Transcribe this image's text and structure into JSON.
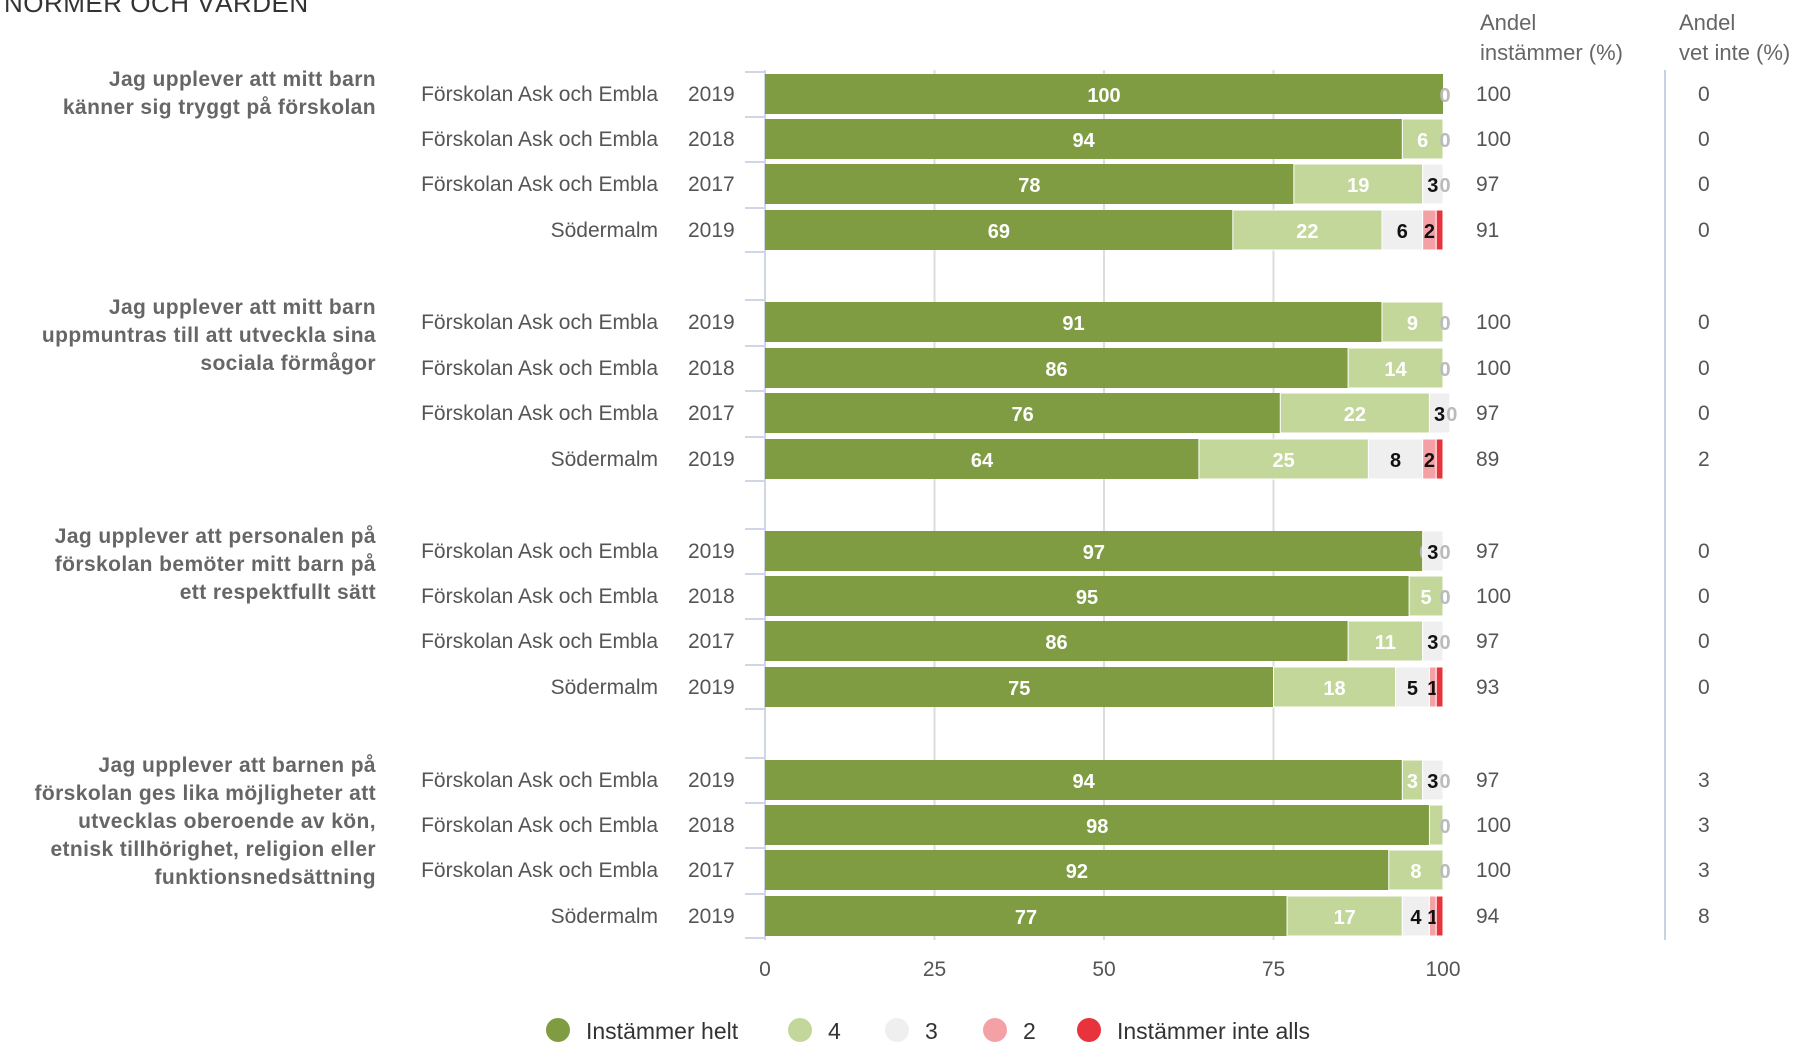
{
  "header": {
    "section_title": "NORMER OCH VÄRDEN",
    "col_agree": "Andel instämmer (%)",
    "col_agree_line1": "Andel",
    "col_agree_line2": "instämmer (%)",
    "col_dontknow": "Andel vet inte (%)",
    "col_dontknow_line1": "Andel",
    "col_dontknow_line2": "vet inte (%)"
  },
  "chart_data": {
    "type": "bar",
    "orientation": "horizontal",
    "stacked": true,
    "xlim": [
      0,
      100
    ],
    "xticks": [
      0,
      25,
      50,
      75,
      100
    ],
    "grid": true,
    "legend_position": "bottom",
    "legend": [
      {
        "name": "Instämmer helt",
        "color": "#7f9c43"
      },
      {
        "name": "4",
        "color": "#c4d79b"
      },
      {
        "name": "3",
        "color": "#efefef"
      },
      {
        "name": "2",
        "color": "#f4a1a6"
      },
      {
        "name": "Instämmer inte alls",
        "color": "#e8333d"
      }
    ],
    "groups": [
      {
        "question": "Jag upplever att mitt barn känner sig tryggt på förskolan",
        "question_lines": [
          "Jag upplever att mitt barn",
          "känner sig tryggt på förskolan"
        ],
        "rows": [
          {
            "unit": "Förskolan Ask och Embla",
            "year": "2019",
            "values": [
              100,
              0,
              0,
              0,
              0
            ],
            "labels": [
              "100",
              "",
              "0",
              "",
              ""
            ],
            "agree": "100",
            "dontknow": "0"
          },
          {
            "unit": "Förskolan Ask och Embla",
            "year": "2018",
            "values": [
              94,
              6,
              0,
              0,
              0
            ],
            "labels": [
              "94",
              "6",
              "0",
              "",
              ""
            ],
            "agree": "100",
            "dontknow": "0"
          },
          {
            "unit": "Förskolan Ask och Embla",
            "year": "2017",
            "values": [
              78,
              19,
              3,
              0,
              0
            ],
            "labels": [
              "78",
              "19",
              "3",
              "0",
              ""
            ],
            "agree": "97",
            "dontknow": "0"
          },
          {
            "unit": "Södermalm",
            "year": "2019",
            "values": [
              69,
              22,
              6,
              2,
              1
            ],
            "labels": [
              "69",
              "22",
              "6",
              "2",
              ""
            ],
            "agree": "91",
            "dontknow": "0"
          }
        ]
      },
      {
        "question": "Jag upplever att mitt barn uppmuntras till att utveckla sina sociala förmågor",
        "question_lines": [
          "Jag upplever att mitt barn",
          "uppmuntras till att utveckla sina",
          "sociala förmågor"
        ],
        "rows": [
          {
            "unit": "Förskolan Ask och Embla",
            "year": "2019",
            "values": [
              91,
              9,
              0,
              0,
              0
            ],
            "labels": [
              "91",
              "9",
              "0",
              "",
              ""
            ],
            "agree": "100",
            "dontknow": "0"
          },
          {
            "unit": "Förskolan Ask och Embla",
            "year": "2018",
            "values": [
              86,
              14,
              0,
              0,
              0
            ],
            "labels": [
              "86",
              "14",
              "0",
              "",
              ""
            ],
            "agree": "100",
            "dontknow": "0"
          },
          {
            "unit": "Förskolan Ask och Embla",
            "year": "2017",
            "values": [
              76,
              22,
              3,
              0,
              0
            ],
            "labels": [
              "76",
              "22",
              "3",
              "0",
              ""
            ],
            "agree": "97",
            "dontknow": "0"
          },
          {
            "unit": "Södermalm",
            "year": "2019",
            "values": [
              64,
              25,
              8,
              2,
              1
            ],
            "labels": [
              "64",
              "25",
              "8",
              "2",
              ""
            ],
            "agree": "89",
            "dontknow": "2"
          }
        ]
      },
      {
        "question": "Jag upplever att personalen på förskolan bemöter mitt barn på ett respektfullt sätt",
        "question_lines": [
          "Jag upplever att personalen på",
          "förskolan bemöter mitt barn på",
          "ett respektfullt sätt"
        ],
        "rows": [
          {
            "unit": "Förskolan Ask och Embla",
            "year": "2019",
            "values": [
              97,
              0,
              3,
              0,
              0
            ],
            "labels": [
              "97",
              "0",
              "3",
              "0",
              ""
            ],
            "agree": "97",
            "dontknow": "0"
          },
          {
            "unit": "Förskolan Ask och Embla",
            "year": "2018",
            "values": [
              95,
              5,
              0,
              0,
              0
            ],
            "labels": [
              "95",
              "5",
              "0",
              "",
              ""
            ],
            "agree": "100",
            "dontknow": "0"
          },
          {
            "unit": "Förskolan Ask och Embla",
            "year": "2017",
            "values": [
              86,
              11,
              3,
              0,
              0
            ],
            "labels": [
              "86",
              "11",
              "3",
              "0",
              ""
            ],
            "agree": "97",
            "dontknow": "0"
          },
          {
            "unit": "Södermalm",
            "year": "2019",
            "values": [
              75,
              18,
              5,
              1,
              1
            ],
            "labels": [
              "75",
              "18",
              "5",
              "1",
              ""
            ],
            "agree": "93",
            "dontknow": "0"
          }
        ]
      },
      {
        "question": "Jag upplever att barnen på förskolan ges lika möjligheter att utvecklas oberoende av kön, etnisk tillhörighet, religion eller funktionsnedsättning",
        "question_lines": [
          "Jag upplever att barnen på",
          "förskolan ges lika möjligheter att",
          "utvecklas oberoende av kön,",
          "etnisk tillhörighet, religion eller",
          "funktionsnedsättning"
        ],
        "rows": [
          {
            "unit": "Förskolan Ask och Embla",
            "year": "2019",
            "values": [
              94,
              3,
              3,
              0,
              0
            ],
            "labels": [
              "94",
              "3",
              "3",
              "0",
              ""
            ],
            "agree": "97",
            "dontknow": "3"
          },
          {
            "unit": "Förskolan Ask och Embla",
            "year": "2018",
            "values": [
              98,
              2,
              0,
              0,
              0
            ],
            "labels": [
              "98",
              "",
              "0",
              "",
              ""
            ],
            "agree": "100",
            "dontknow": "3"
          },
          {
            "unit": "Förskolan Ask och Embla",
            "year": "2017",
            "values": [
              92,
              8,
              0,
              0,
              0
            ],
            "labels": [
              "92",
              "8",
              "0",
              "",
              ""
            ],
            "agree": "100",
            "dontknow": "3"
          },
          {
            "unit": "Södermalm",
            "year": "2019",
            "values": [
              77,
              17,
              4,
              1,
              1
            ],
            "labels": [
              "77",
              "17",
              "4",
              "1",
              ""
            ],
            "agree": "94",
            "dontknow": "8"
          }
        ]
      }
    ]
  }
}
